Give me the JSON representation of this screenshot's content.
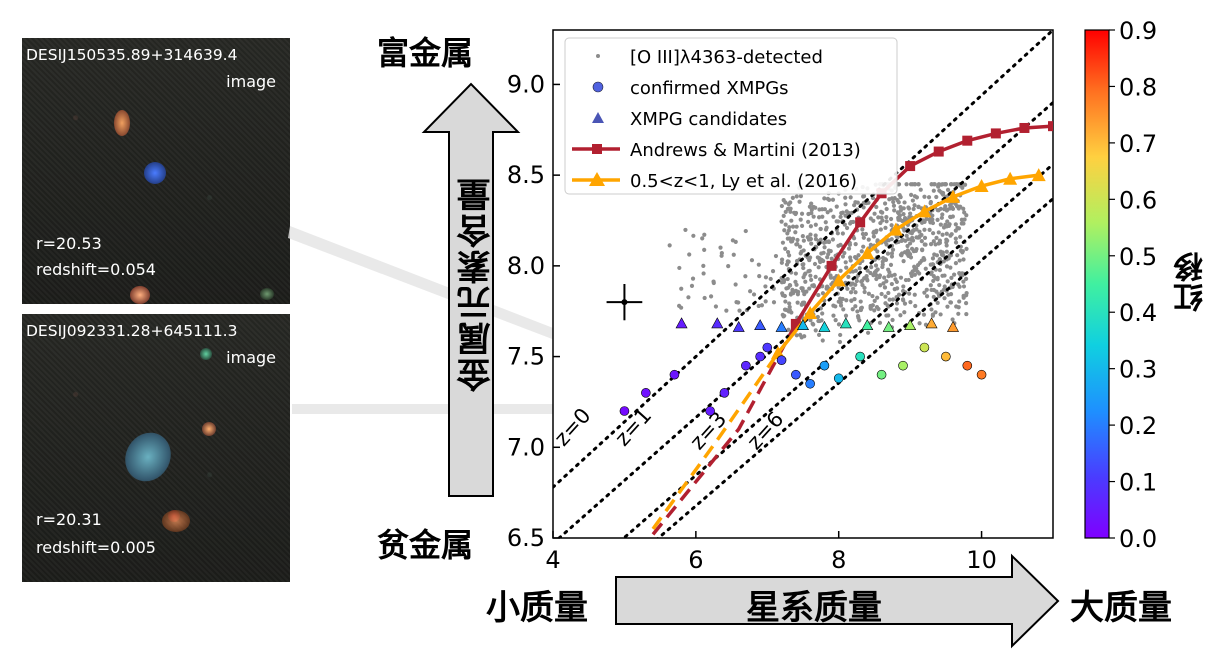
{
  "cutouts": [
    {
      "name": "DESIJ150535.89+314639.4",
      "type_label": "image",
      "r_text": "r=20.53",
      "z_text": "redshift=0.054"
    },
    {
      "name": "DESIJ092331.28+645111.3",
      "type_label": "image",
      "r_text": "r=20.31",
      "z_text": "redshift=0.005"
    }
  ],
  "labels": {
    "metal_rich": "富金属",
    "metal_poor": "贫金属",
    "metallicity": "金属元素含量",
    "low_mass": "小质量",
    "galaxy_mass": "星系质量",
    "high_mass": "大质量",
    "colorbar_label": "红移"
  },
  "colors": {
    "andrews": "#b22030",
    "ly": "#ffa500",
    "gray_points": "#8c8c8c",
    "arrow_fill": "#d9d9d9"
  },
  "chart_data": {
    "type": "scatter",
    "xlim": [
      4,
      11
    ],
    "ylim": [
      6.5,
      9.3
    ],
    "xticks": [
      "4",
      "6",
      "8",
      "10"
    ],
    "yticks": [
      "6.5",
      "7.0",
      "7.5",
      "8.0",
      "8.5",
      "9.0"
    ],
    "colorbar": {
      "range": [
        0,
        0.9
      ],
      "ticks": [
        "0.0",
        "0.1",
        "0.2",
        "0.3",
        "0.4",
        "0.5",
        "0.6",
        "0.7",
        "0.8",
        "0.9"
      ],
      "colormap": "rainbow"
    },
    "legend": {
      "placement": "upper-left",
      "entries": [
        {
          "label": "[O III]λ4363-detected",
          "marker": "dot",
          "color": "#8c8c8c"
        },
        {
          "label": "confirmed XMPGs",
          "marker": "circle",
          "color": "#5062e0"
        },
        {
          "label": "XMPG candidates",
          "marker": "triangle",
          "color": "#4a55b5"
        },
        {
          "label": "Andrews & Martini (2013)",
          "marker": "square-line",
          "color": "#b22030"
        },
        {
          "label": "0.5<z<1, Ly et al. (2016)",
          "marker": "triangle-line",
          "color": "#ffa500"
        }
      ]
    },
    "series": [
      {
        "name": "Andrews & Martini (2013)",
        "x": [
          7.4,
          7.9,
          8.3,
          8.6,
          9.0,
          9.4,
          9.8,
          10.2,
          10.6,
          11.0
        ],
        "y": [
          7.68,
          8.0,
          8.24,
          8.4,
          8.55,
          8.63,
          8.69,
          8.73,
          8.76,
          8.77
        ],
        "extrapolated": {
          "x": [
            5.4,
            6.6,
            7.4
          ],
          "y": [
            6.52,
            7.1,
            7.68
          ]
        }
      },
      {
        "name": "0.5<z<1, Ly et al. (2016)",
        "x": [
          7.15,
          7.6,
          8.0,
          8.4,
          8.8,
          9.2,
          9.6,
          10.0,
          10.4,
          10.8
        ],
        "y": [
          7.52,
          7.74,
          7.92,
          8.07,
          8.2,
          8.3,
          8.38,
          8.44,
          8.48,
          8.5
        ],
        "extrapolated": {
          "x": [
            5.4,
            6.3,
            7.15
          ],
          "y": [
            6.55,
            7.04,
            7.52
          ]
        }
      }
    ],
    "dotted_lines": [
      {
        "label": "z=0",
        "x": [
          4,
          11
        ],
        "y": [
          6.78,
          9.3
        ]
      },
      {
        "label": "z=1",
        "x": [
          4,
          11
        ],
        "y": [
          6.47,
          8.9
        ]
      },
      {
        "label": "z=3",
        "x": [
          4,
          11
        ],
        "y": [
          6.16,
          8.56
        ]
      },
      {
        "label": "z=6",
        "x": [
          4,
          11
        ],
        "y": [
          6.0,
          8.37
        ]
      }
    ],
    "error_bar": {
      "x": 5.0,
      "y": 7.8,
      "xerr": 0.25,
      "yerr": 0.1
    },
    "confirmed_xmpgs": {
      "x": [
        5.0,
        5.3,
        5.7,
        6.2,
        6.4,
        6.7,
        6.9,
        7.0,
        7.2,
        7.4,
        7.6,
        7.8,
        8.0,
        8.3,
        8.6,
        8.9,
        9.2,
        9.5,
        9.8,
        10.0
      ],
      "y": [
        7.2,
        7.3,
        7.4,
        7.2,
        7.3,
        7.45,
        7.5,
        7.55,
        7.48,
        7.4,
        7.35,
        7.45,
        7.38,
        7.5,
        7.4,
        7.45,
        7.55,
        7.5,
        7.45,
        7.4
      ],
      "z": [
        0.02,
        0.03,
        0.04,
        0.05,
        0.06,
        0.07,
        0.08,
        0.1,
        0.12,
        0.15,
        0.2,
        0.25,
        0.3,
        0.4,
        0.5,
        0.55,
        0.6,
        0.7,
        0.8,
        0.78
      ]
    },
    "xmpg_candidates": {
      "x": [
        5.8,
        6.3,
        6.6,
        6.9,
        7.2,
        7.5,
        7.8,
        8.1,
        8.4,
        8.7,
        9.0,
        9.3,
        9.6
      ],
      "y": [
        7.68,
        7.68,
        7.66,
        7.67,
        7.66,
        7.67,
        7.66,
        7.68,
        7.67,
        7.66,
        7.67,
        7.68,
        7.66
      ],
      "z": [
        0.05,
        0.08,
        0.1,
        0.15,
        0.2,
        0.3,
        0.35,
        0.4,
        0.45,
        0.5,
        0.55,
        0.72,
        0.74
      ]
    }
  }
}
